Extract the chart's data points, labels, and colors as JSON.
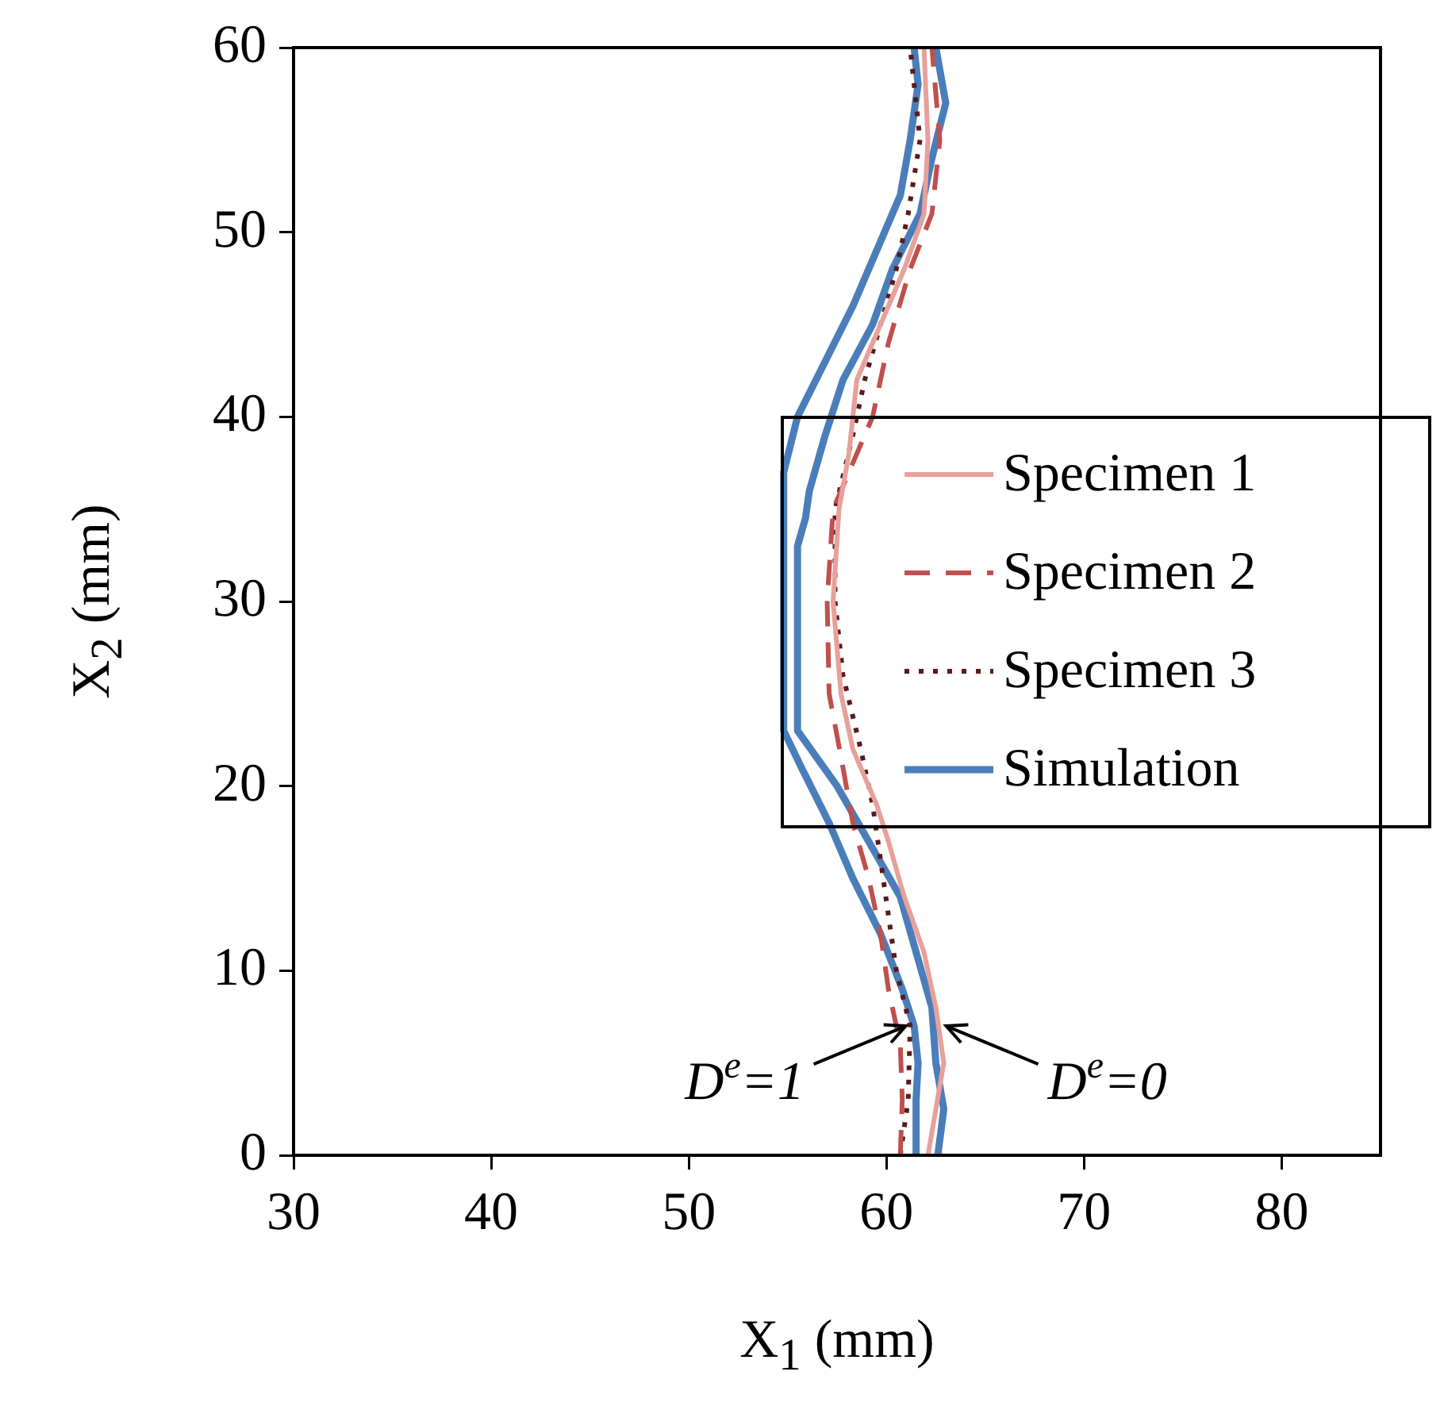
{
  "chart_data": {
    "type": "line",
    "xlabel": "X$_{1}$ (mm)",
    "ylabel": "X$_{2}$ (mm)",
    "xlim": [
      30,
      85
    ],
    "xticks": [
      30,
      40,
      50,
      60,
      70,
      80
    ],
    "ylim": [
      0,
      60
    ],
    "yticks": [
      0,
      10,
      20,
      30,
      40,
      50,
      60
    ],
    "grid": false,
    "legend": "right",
    "marker": "none",
    "series": [
      {
        "name": "Specimen 1",
        "color": "#e8a09a",
        "line_style": "solid",
        "x": [
          62.1,
          62.9,
          62.5,
          61.9,
          60.9,
          60.1,
          59.5,
          58.3,
          57.7,
          57.3,
          57.6,
          58.1,
          58.5,
          59.7,
          60.9,
          61.9,
          62.1,
          61.9
        ],
        "values": [
          0,
          5,
          8,
          11,
          14,
          17,
          19,
          22,
          25,
          30,
          35,
          38,
          42,
          45,
          48,
          51,
          55,
          60
        ]
      },
      {
        "name": "Specimen 2",
        "color": "#c0504d",
        "line_style": "dashed",
        "x": [
          60.7,
          60.8,
          60.7,
          60.1,
          59.7,
          59.1,
          58.3,
          57.8,
          57.1,
          57.0,
          57.3,
          59.3,
          60.1,
          61.2,
          62.3,
          62.7,
          62.3
        ],
        "values": [
          0,
          3,
          6,
          9,
          12,
          15,
          18,
          21,
          25,
          30,
          35,
          40,
          44,
          48,
          51,
          55,
          60
        ]
      },
      {
        "name": "Specimen 3",
        "color": "#5a1a1a",
        "line_style": "dotted",
        "x": [
          60.7,
          61.1,
          61.2,
          60.5,
          60.1,
          59.7,
          59.3,
          58.7,
          57.8,
          57.4,
          57.4,
          58.3,
          58.9,
          59.7,
          60.5,
          61.1,
          61.7,
          61.4,
          61.2
        ],
        "values": [
          0,
          3,
          7,
          10,
          13,
          16,
          19,
          22,
          26,
          30,
          35,
          39,
          42,
          45,
          48,
          51,
          55,
          58,
          60
        ]
      },
      {
        "name": "Simulation",
        "color": "#4a7ebb",
        "line_style": "solid",
        "x": [
          61.5,
          61.5,
          61.6,
          61.4,
          60.8,
          59.7,
          58.3,
          57.1,
          55.7,
          54.8,
          54.8,
          55.5,
          56.9,
          58.3,
          59.5,
          60.7,
          61.2,
          61.6,
          61.4
        ],
        "values": [
          0,
          3,
          5,
          7,
          9,
          12,
          15,
          18,
          21,
          23,
          37,
          40,
          43,
          46,
          49,
          52,
          55,
          58,
          60
        ]
      },
      {
        "color": "#4a7ebb",
        "line_style": "solid",
        "x": [
          62.6,
          62.9,
          62.5,
          62.3,
          61.5,
          60.7,
          59.1,
          57.5,
          55.5,
          55.5,
          55.9,
          56.1,
          56.9,
          57.8,
          59.3,
          60.3,
          61.7,
          62.3,
          63.0,
          62.5
        ],
        "values": [
          0,
          2.5,
          5,
          8,
          11,
          14,
          17,
          20,
          23,
          33,
          34.5,
          36,
          39,
          42,
          45,
          48,
          51,
          54,
          57,
          60
        ]
      }
    ],
    "annotations": [
      {
        "text": "D$^{e}$=1",
        "x": 61.3,
        "y": 7
      },
      {
        "text": "D$^{e}$=0",
        "x": 62.7,
        "y": 7
      }
    ]
  }
}
